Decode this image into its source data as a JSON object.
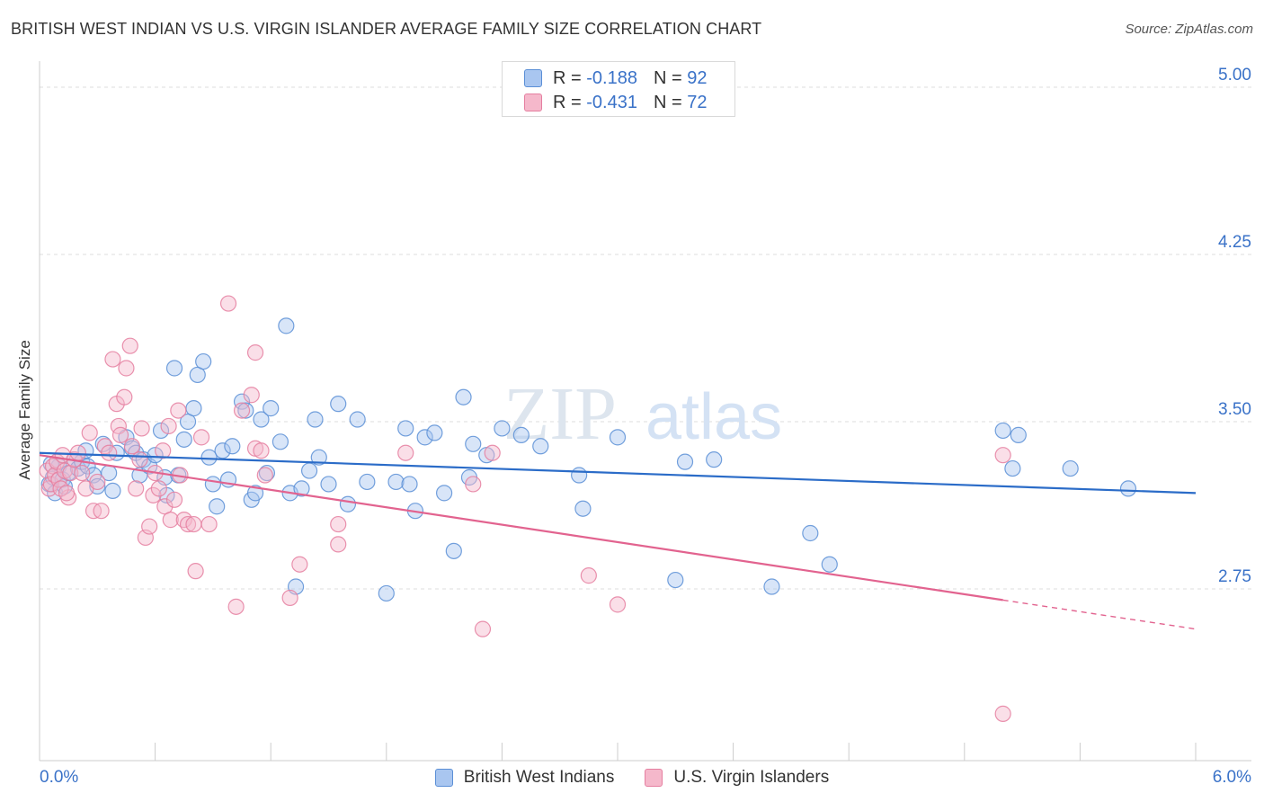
{
  "header": {
    "title": "BRITISH WEST INDIAN VS U.S. VIRGIN ISLANDER AVERAGE FAMILY SIZE CORRELATION CHART",
    "source": "Source: ZipAtlas.com"
  },
  "watermark": {
    "zip": "ZIP",
    "atlas": "atlas"
  },
  "legend": {
    "rows": [
      {
        "r_label": "R =",
        "r_value": "-0.188",
        "n_label": "N =",
        "n_value": "92"
      },
      {
        "r_label": "R =",
        "r_value": "-0.431",
        "n_label": "N =",
        "n_value": "72"
      }
    ]
  },
  "chart_data": {
    "type": "scatter",
    "title": "BRITISH WEST INDIAN VS U.S. VIRGIN ISLANDER AVERAGE FAMILY SIZE CORRELATION CHART",
    "xlabel": "",
    "ylabel": "Average Family Size",
    "xlim": [
      0,
      6
    ],
    "ylim": [
      2.0,
      5.1
    ],
    "x_tick_labels": [
      "0.0%",
      "6.0%"
    ],
    "y_ticks": [
      2.75,
      3.5,
      4.25,
      5.0
    ],
    "y_tick_labels": [
      "2.75",
      "3.50",
      "4.25",
      "5.00"
    ],
    "grid": true,
    "legend_position": "top-center",
    "colors": {
      "blue_fill": "#a9c6f0",
      "blue_stroke": "#5b8fd6",
      "blue_line": "#2b6cc8",
      "pink_fill": "#f5b8cb",
      "pink_stroke": "#e57fa0",
      "pink_line": "#e2638f",
      "tick_label": "#3a72c8",
      "grid": "#dddddd"
    },
    "series": [
      {
        "name": "British West Indians",
        "r": -0.188,
        "n": 92,
        "trend": {
          "x0": 0.0,
          "y0": 3.36,
          "x1": 6.0,
          "y1": 3.18
        },
        "points": [
          [
            0.05,
            3.22
          ],
          [
            0.07,
            3.25
          ],
          [
            0.08,
            3.18
          ],
          [
            0.1,
            3.3
          ],
          [
            0.12,
            3.24
          ],
          [
            0.13,
            3.21
          ],
          [
            0.15,
            3.27
          ],
          [
            0.18,
            3.33
          ],
          [
            0.2,
            3.29
          ],
          [
            0.22,
            3.32
          ],
          [
            0.24,
            3.37
          ],
          [
            0.25,
            3.3
          ],
          [
            0.28,
            3.26
          ],
          [
            0.3,
            3.21
          ],
          [
            0.33,
            3.4
          ],
          [
            0.36,
            3.27
          ],
          [
            0.38,
            3.19
          ],
          [
            0.4,
            3.36
          ],
          [
            0.45,
            3.43
          ],
          [
            0.48,
            3.38
          ],
          [
            0.5,
            3.36
          ],
          [
            0.52,
            3.26
          ],
          [
            0.54,
            3.33
          ],
          [
            0.57,
            3.3
          ],
          [
            0.6,
            3.35
          ],
          [
            0.63,
            3.46
          ],
          [
            0.65,
            3.25
          ],
          [
            0.66,
            3.17
          ],
          [
            0.7,
            3.74
          ],
          [
            0.72,
            3.26
          ],
          [
            0.75,
            3.42
          ],
          [
            0.77,
            3.5
          ],
          [
            0.8,
            3.56
          ],
          [
            0.82,
            3.71
          ],
          [
            0.85,
            3.77
          ],
          [
            0.88,
            3.34
          ],
          [
            0.9,
            3.22
          ],
          [
            0.92,
            3.12
          ],
          [
            0.95,
            3.37
          ],
          [
            0.98,
            3.24
          ],
          [
            1.0,
            3.39
          ],
          [
            1.05,
            3.59
          ],
          [
            1.07,
            3.55
          ],
          [
            1.1,
            3.15
          ],
          [
            1.12,
            3.18
          ],
          [
            1.15,
            3.51
          ],
          [
            1.18,
            3.27
          ],
          [
            1.2,
            3.56
          ],
          [
            1.25,
            3.41
          ],
          [
            1.28,
            3.93
          ],
          [
            1.3,
            3.18
          ],
          [
            1.33,
            2.76
          ],
          [
            1.36,
            3.2
          ],
          [
            1.4,
            3.28
          ],
          [
            1.43,
            3.51
          ],
          [
            1.45,
            3.34
          ],
          [
            1.5,
            3.22
          ],
          [
            1.55,
            3.58
          ],
          [
            1.6,
            3.13
          ],
          [
            1.65,
            3.51
          ],
          [
            1.7,
            3.23
          ],
          [
            1.8,
            2.73
          ],
          [
            1.85,
            3.23
          ],
          [
            1.9,
            3.47
          ],
          [
            1.92,
            3.22
          ],
          [
            1.95,
            3.1
          ],
          [
            2.0,
            3.43
          ],
          [
            2.05,
            3.45
          ],
          [
            2.1,
            3.18
          ],
          [
            2.15,
            2.92
          ],
          [
            2.2,
            3.61
          ],
          [
            2.23,
            3.25
          ],
          [
            2.25,
            3.4
          ],
          [
            2.32,
            3.35
          ],
          [
            2.4,
            3.47
          ],
          [
            2.5,
            3.44
          ],
          [
            2.6,
            3.39
          ],
          [
            2.8,
            3.26
          ],
          [
            2.82,
            3.11
          ],
          [
            3.0,
            3.43
          ],
          [
            3.3,
            2.79
          ],
          [
            3.35,
            3.32
          ],
          [
            3.5,
            3.33
          ],
          [
            3.8,
            2.76
          ],
          [
            4.0,
            3.0
          ],
          [
            4.1,
            2.86
          ],
          [
            5.0,
            3.46
          ],
          [
            5.05,
            3.29
          ],
          [
            5.08,
            3.44
          ],
          [
            5.35,
            3.29
          ],
          [
            5.65,
            3.2
          ],
          [
            0.06,
            3.31
          ]
        ]
      },
      {
        "name": "U.S. Virgin Islanders",
        "r": -0.431,
        "n": 72,
        "trend": {
          "x0": 0.0,
          "y0": 3.35,
          "x1": 6.0,
          "y1": 2.57,
          "solid_until": 5.0
        },
        "points": [
          [
            0.04,
            3.28
          ],
          [
            0.05,
            3.2
          ],
          [
            0.06,
            3.22
          ],
          [
            0.07,
            3.3
          ],
          [
            0.08,
            3.26
          ],
          [
            0.09,
            3.32
          ],
          [
            0.1,
            3.24
          ],
          [
            0.12,
            3.35
          ],
          [
            0.13,
            3.28
          ],
          [
            0.15,
            3.16
          ],
          [
            0.16,
            3.27
          ],
          [
            0.18,
            3.33
          ],
          [
            0.2,
            3.36
          ],
          [
            0.22,
            3.27
          ],
          [
            0.24,
            3.2
          ],
          [
            0.26,
            3.45
          ],
          [
            0.28,
            3.1
          ],
          [
            0.3,
            3.23
          ],
          [
            0.32,
            3.1
          ],
          [
            0.34,
            3.39
          ],
          [
            0.36,
            3.36
          ],
          [
            0.38,
            3.78
          ],
          [
            0.4,
            3.58
          ],
          [
            0.41,
            3.48
          ],
          [
            0.42,
            3.44
          ],
          [
            0.44,
            3.61
          ],
          [
            0.45,
            3.74
          ],
          [
            0.47,
            3.84
          ],
          [
            0.48,
            3.39
          ],
          [
            0.5,
            3.2
          ],
          [
            0.52,
            3.33
          ],
          [
            0.53,
            3.47
          ],
          [
            0.55,
            2.98
          ],
          [
            0.57,
            3.03
          ],
          [
            0.59,
            3.17
          ],
          [
            0.6,
            3.27
          ],
          [
            0.62,
            3.2
          ],
          [
            0.64,
            3.37
          ],
          [
            0.65,
            3.12
          ],
          [
            0.67,
            3.48
          ],
          [
            0.68,
            3.06
          ],
          [
            0.7,
            3.15
          ],
          [
            0.72,
            3.55
          ],
          [
            0.73,
            3.26
          ],
          [
            0.75,
            3.06
          ],
          [
            0.77,
            3.04
          ],
          [
            0.8,
            3.04
          ],
          [
            0.81,
            2.83
          ],
          [
            0.84,
            3.43
          ],
          [
            0.88,
            3.04
          ],
          [
            0.98,
            4.03
          ],
          [
            1.02,
            2.67
          ],
          [
            1.05,
            3.55
          ],
          [
            1.1,
            3.62
          ],
          [
            1.12,
            3.38
          ],
          [
            1.15,
            3.37
          ],
          [
            1.17,
            3.26
          ],
          [
            1.12,
            3.81
          ],
          [
            1.3,
            2.71
          ],
          [
            1.35,
            2.86
          ],
          [
            1.55,
            3.04
          ],
          [
            1.55,
            2.95
          ],
          [
            1.9,
            3.36
          ],
          [
            2.25,
            3.22
          ],
          [
            2.3,
            2.57
          ],
          [
            2.35,
            3.36
          ],
          [
            2.85,
            2.81
          ],
          [
            3.0,
            2.68
          ],
          [
            5.0,
            3.35
          ],
          [
            5.0,
            2.19
          ],
          [
            0.11,
            3.2
          ],
          [
            0.14,
            3.18
          ]
        ]
      }
    ]
  }
}
